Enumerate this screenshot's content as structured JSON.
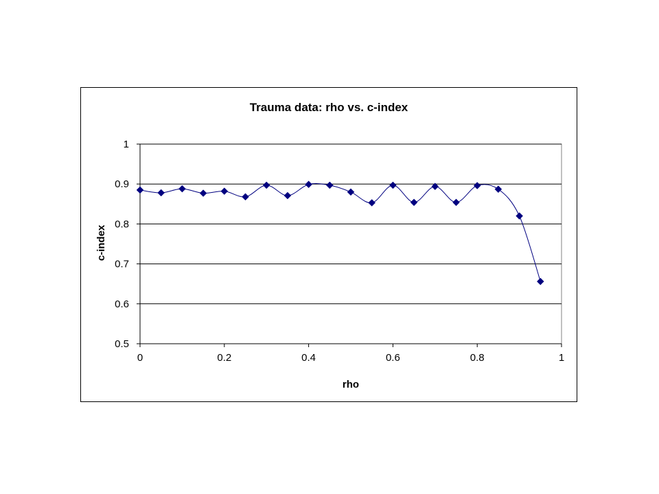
{
  "chart_data": {
    "type": "line",
    "title": "Trauma data: rho vs. c-index",
    "xlabel": "rho",
    "ylabel": "c-index",
    "xlim": [
      0,
      1
    ],
    "ylim": [
      0.5,
      1
    ],
    "x_ticks": [
      0,
      0.2,
      0.4,
      0.6,
      0.8,
      1
    ],
    "x_tick_labels": [
      "0",
      "0.2",
      "0.4",
      "0.6",
      "0.8",
      "1"
    ],
    "y_ticks": [
      0.5,
      0.6,
      0.7,
      0.8,
      0.9,
      1
    ],
    "y_tick_labels": [
      "0.5",
      "0.6",
      "0.7",
      "0.8",
      "0.9",
      "1"
    ],
    "grid": "horizontal major gridlines",
    "legend": "none",
    "line_style": "smoothed",
    "marker": "diamond",
    "series": [
      {
        "x": [
          0,
          0.05,
          0.1,
          0.15,
          0.2,
          0.25,
          0.3,
          0.35,
          0.4,
          0.45,
          0.5,
          0.55,
          0.6,
          0.65,
          0.7,
          0.75,
          0.8,
          0.85,
          0.9,
          0.95
        ],
        "values": [
          0.885,
          0.878,
          0.888,
          0.877,
          0.882,
          0.868,
          0.897,
          0.871,
          0.899,
          0.897,
          0.88,
          0.853,
          0.897,
          0.854,
          0.894,
          0.854,
          0.896,
          0.887,
          0.82,
          0.656
        ],
        "color": "#000080"
      }
    ]
  }
}
